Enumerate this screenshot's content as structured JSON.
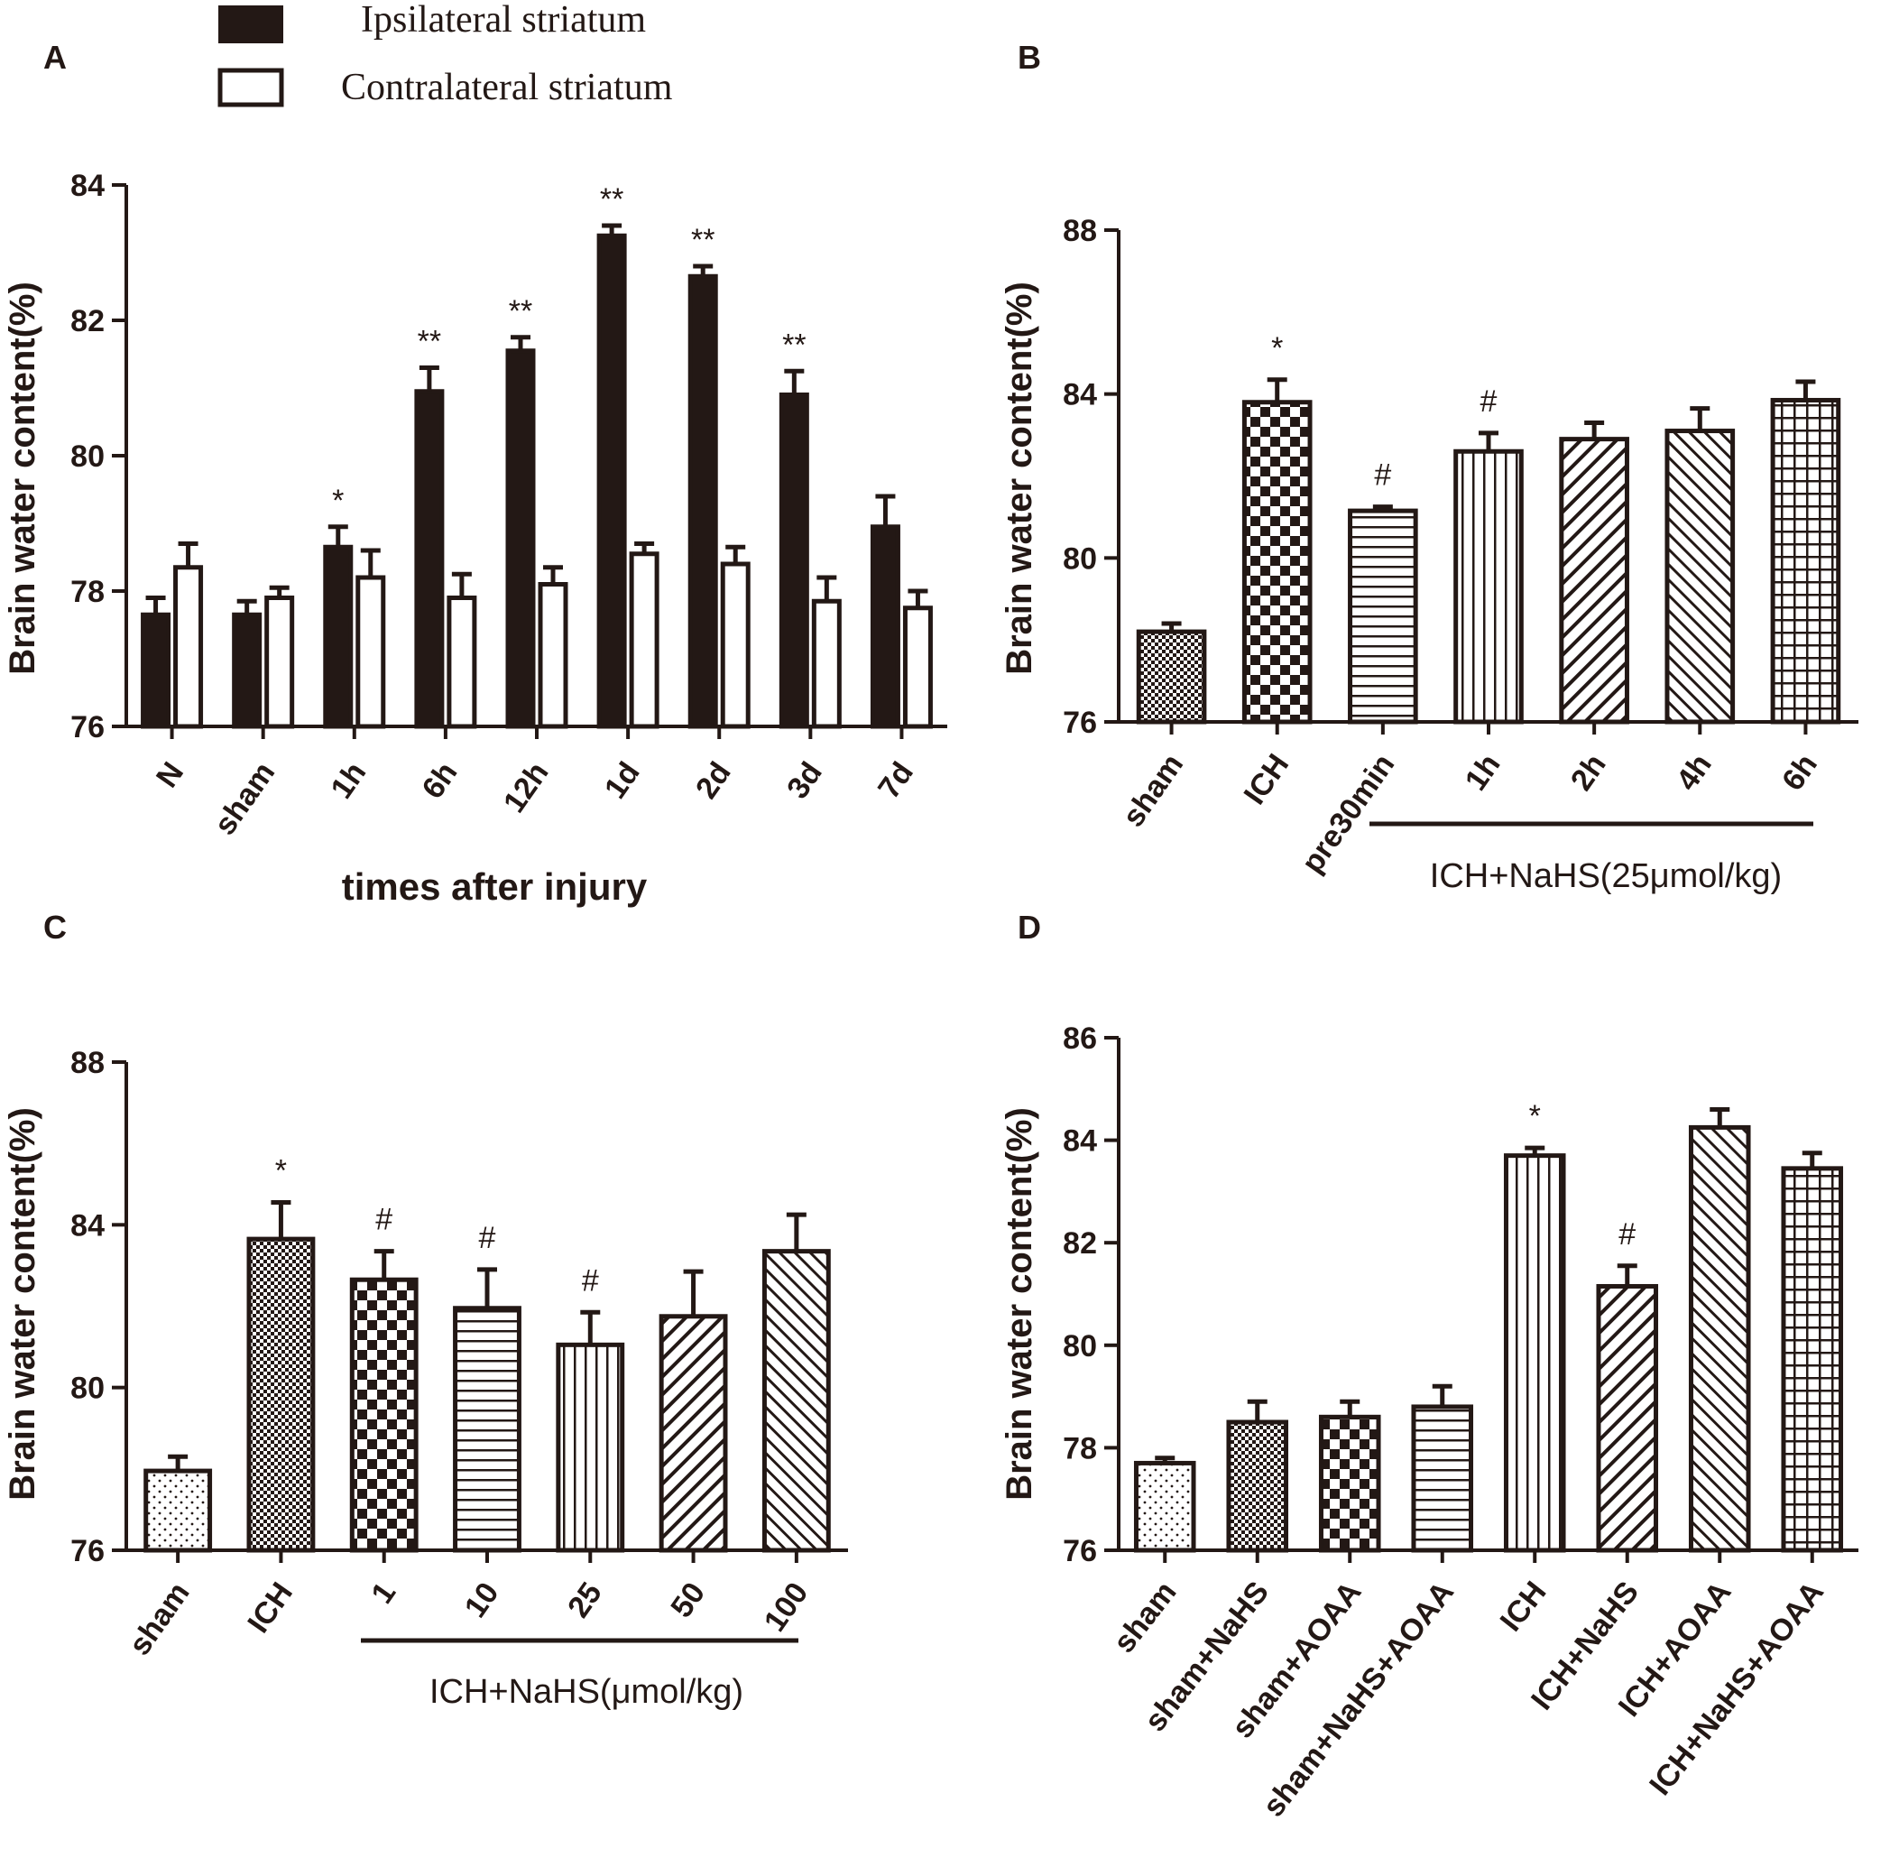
{
  "chart_data": [
    {
      "panel": "A",
      "type": "bar",
      "title": "",
      "xlabel": "times after injury",
      "ylabel": "Brain water content(%)",
      "ylim": [
        76,
        84
      ],
      "yticks": [
        76,
        78,
        80,
        82,
        84
      ],
      "categories": [
        "N",
        "sham",
        "1h",
        "6h",
        "12h",
        "1d",
        "2d",
        "3d",
        "7d"
      ],
      "legend": [
        "Ipsilateral striatum",
        "Contralateral striatum"
      ],
      "series": [
        {
          "name": "Ipsilateral striatum",
          "values": [
            77.65,
            77.65,
            78.65,
            80.95,
            81.55,
            83.25,
            82.65,
            80.9,
            78.95
          ],
          "errors": [
            0.25,
            0.2,
            0.3,
            0.35,
            0.2,
            0.15,
            0.15,
            0.35,
            0.45
          ]
        },
        {
          "name": "Contralateral striatum",
          "values": [
            78.35,
            77.9,
            78.2,
            77.9,
            78.1,
            78.55,
            78.4,
            77.85,
            77.75
          ],
          "errors": [
            0.35,
            0.15,
            0.4,
            0.35,
            0.25,
            0.15,
            0.25,
            0.35,
            0.25
          ]
        }
      ],
      "significance": [
        "",
        "",
        "*",
        "**",
        "**",
        "**",
        "**",
        "**",
        ""
      ]
    },
    {
      "panel": "B",
      "type": "bar",
      "xlabel": "",
      "ylabel": "Brain water content(%)",
      "ylim": [
        76,
        88
      ],
      "yticks": [
        76,
        80,
        84,
        88
      ],
      "categories": [
        "sham",
        "ICH",
        "pre30min",
        "1h",
        "2h",
        "4h",
        "6h"
      ],
      "values": [
        78.2,
        83.8,
        81.15,
        82.6,
        82.9,
        83.1,
        83.85
      ],
      "errors": [
        0.2,
        0.55,
        0.1,
        0.45,
        0.4,
        0.55,
        0.45
      ],
      "significance": [
        "",
        "*",
        "#",
        "#",
        "",
        "",
        ""
      ],
      "group_label": "ICH+NaHS(25μmol/kg)"
    },
    {
      "panel": "C",
      "type": "bar",
      "xlabel": "",
      "ylabel": "Brain water content(%)",
      "ylim": [
        76,
        88
      ],
      "yticks": [
        76,
        80,
        84,
        88
      ],
      "categories": [
        "sham",
        "ICH",
        "1",
        "10",
        "25",
        "50",
        "100"
      ],
      "values": [
        77.95,
        83.65,
        82.65,
        81.95,
        81.05,
        81.75,
        83.35
      ],
      "errors": [
        0.35,
        0.9,
        0.7,
        0.95,
        0.8,
        1.1,
        0.9
      ],
      "significance": [
        "",
        "*",
        "#",
        "#",
        "#",
        "",
        ""
      ],
      "group_label": "ICH+NaHS(μmol/kg)"
    },
    {
      "panel": "D",
      "type": "bar",
      "xlabel": "",
      "ylabel": "Brain water content(%)",
      "ylim": [
        76,
        86
      ],
      "yticks": [
        76,
        78,
        80,
        82,
        84,
        86
      ],
      "categories": [
        "sham",
        "sham+NaHS",
        "sham+AOAA",
        "sham+NaHS+AOAA",
        "ICH",
        "ICH+NaHS",
        "ICH+AOAA",
        "ICH+NaHS+AOAA"
      ],
      "values": [
        77.7,
        78.5,
        78.6,
        78.8,
        83.7,
        81.15,
        84.25,
        83.45
      ],
      "errors": [
        0.1,
        0.4,
        0.3,
        0.4,
        0.15,
        0.4,
        0.35,
        0.3
      ],
      "significance": [
        "",
        "",
        "",
        "",
        "*",
        "#",
        "",
        ""
      ]
    }
  ],
  "page": {
    "panel_labels": [
      "A",
      "B",
      "C",
      "D"
    ]
  }
}
